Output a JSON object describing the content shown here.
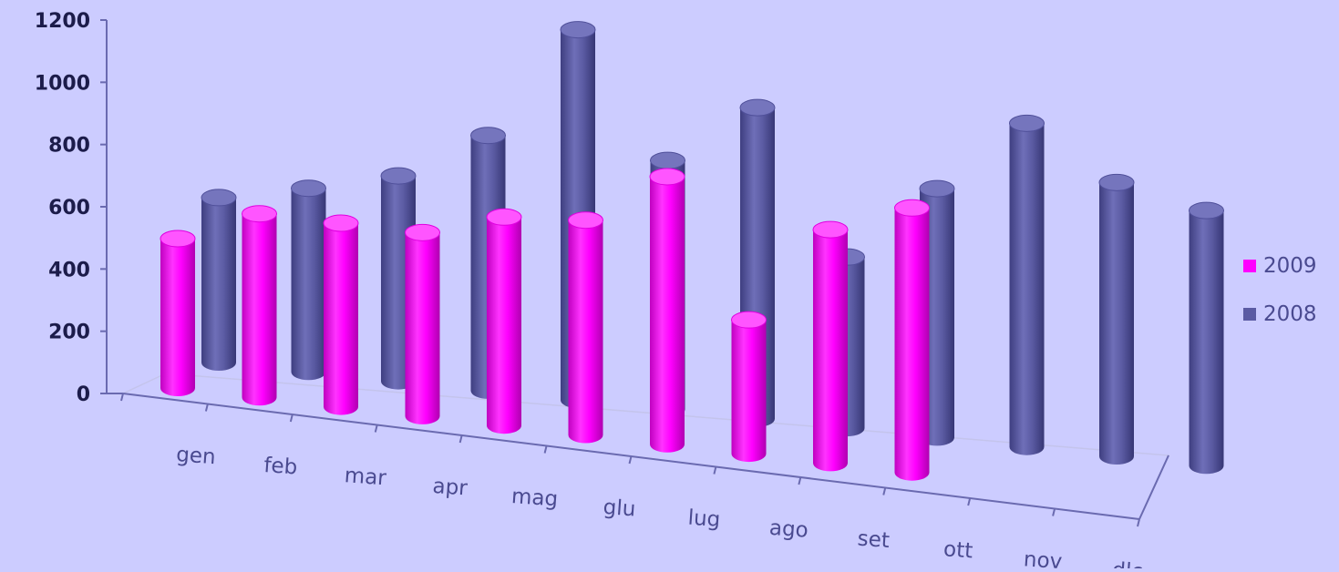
{
  "chart_data": {
    "type": "bar",
    "style": "3d-cylinder",
    "categories": [
      "gen",
      "feb",
      "mar",
      "apr",
      "mag",
      "glu",
      "lug",
      "ago",
      "set",
      "ott",
      "nov",
      "dlc"
    ],
    "series": [
      {
        "name": "2009",
        "color": "#ff00ff",
        "values": [
          480,
          590,
          590,
          590,
          670,
          690,
          860,
          430,
          750,
          850,
          null,
          null
        ]
      },
      {
        "name": "2008",
        "color": "#5b5ba3",
        "values": [
          530,
          590,
          660,
          820,
          1190,
          800,
          1000,
          550,
          800,
          1040,
          880,
          820
        ]
      }
    ],
    "yticks": [
      "0",
      "200",
      "400",
      "600",
      "800",
      "1000",
      "1200"
    ],
    "ylim": [
      0,
      1200
    ],
    "grid": false,
    "legend": "right"
  }
}
